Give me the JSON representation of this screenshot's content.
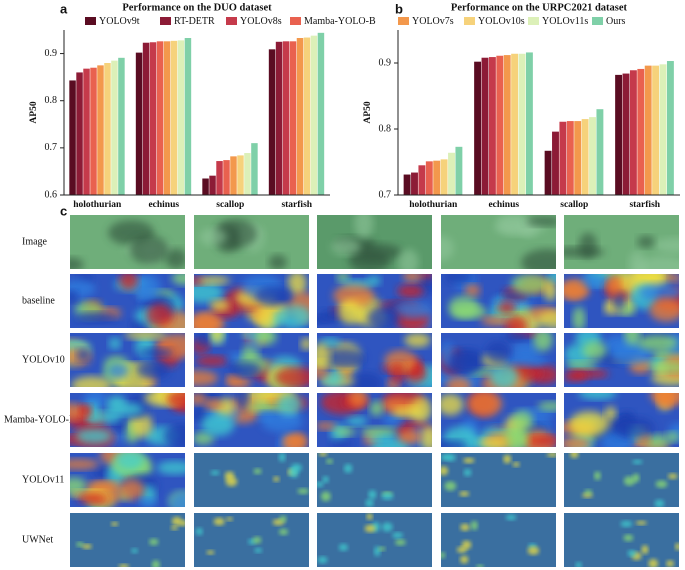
{
  "chart_data": [
    {
      "type": "bar",
      "title": "Performance on the DUO dataset",
      "y_label": "AP50",
      "categories": [
        "holothurian",
        "echinus",
        "scallop",
        "starfish"
      ],
      "series": [
        {
          "name": "YOLOv9t",
          "color": "#5a0c22",
          "values": [
            0.843,
            0.902,
            0.635,
            0.909
          ]
        },
        {
          "name": "RT-DETR",
          "color": "#8c1b36",
          "values": [
            0.86,
            0.923,
            0.641,
            0.925
          ]
        },
        {
          "name": "YOLOv8s",
          "color": "#c53a4b",
          "values": [
            0.868,
            0.924,
            0.672,
            0.926
          ]
        },
        {
          "name": "Mamba-YOLO-B",
          "color": "#e9614f",
          "values": [
            0.87,
            0.926,
            0.674,
            0.926
          ]
        },
        {
          "name": "YOLOv7s",
          "color": "#f3984c",
          "values": [
            0.875,
            0.926,
            0.682,
            0.933
          ]
        },
        {
          "name": "YOLOv10s",
          "color": "#f6d27b",
          "values": [
            0.88,
            0.927,
            0.684,
            0.934
          ]
        },
        {
          "name": "YOLOv11s",
          "color": "#dcf0b8",
          "values": [
            0.885,
            0.928,
            0.689,
            0.938
          ]
        },
        {
          "name": "Ours",
          "color": "#7fd0a8",
          "values": [
            0.891,
            0.933,
            0.71,
            0.944
          ]
        }
      ],
      "ylim": [
        0.6,
        0.95
      ],
      "yticks": [
        0.6,
        0.7,
        0.8,
        0.9
      ]
    },
    {
      "type": "bar",
      "title": "Performance on the URPC2021 dataset",
      "y_label": "AP50",
      "categories": [
        "holothurian",
        "echinus",
        "scallop",
        "starfish"
      ],
      "series": [
        {
          "name": "YOLOv9t",
          "color": "#5a0c22",
          "values": [
            0.731,
            0.902,
            0.767,
            0.882
          ]
        },
        {
          "name": "RT-DETR",
          "color": "#8c1b36",
          "values": [
            0.734,
            0.908,
            0.796,
            0.884
          ]
        },
        {
          "name": "YOLOv8s",
          "color": "#c53a4b",
          "values": [
            0.745,
            0.909,
            0.811,
            0.889
          ]
        },
        {
          "name": "Mamba-YOLO-B",
          "color": "#e9614f",
          "values": [
            0.751,
            0.911,
            0.812,
            0.891
          ]
        },
        {
          "name": "YOLOv7s",
          "color": "#f3984c",
          "values": [
            0.752,
            0.912,
            0.812,
            0.896
          ]
        },
        {
          "name": "YOLOv10s",
          "color": "#f6d27b",
          "values": [
            0.754,
            0.914,
            0.815,
            0.896
          ]
        },
        {
          "name": "YOLOv11s",
          "color": "#dcf0b8",
          "values": [
            0.764,
            0.914,
            0.818,
            0.898
          ]
        },
        {
          "name": "Ours",
          "color": "#7fd0a8",
          "values": [
            0.773,
            0.916,
            0.83,
            0.903
          ]
        }
      ],
      "ylim": [
        0.7,
        0.95
      ],
      "yticks": [
        0.7,
        0.8,
        0.9
      ]
    }
  ],
  "panel_labels": [
    "a",
    "b",
    "c"
  ],
  "heatmap_grid": {
    "row_labels": [
      "Image",
      "baseline",
      "YOLOv10",
      "Mamba-YOLO-B",
      "YOLOv11",
      "UWNet"
    ]
  }
}
